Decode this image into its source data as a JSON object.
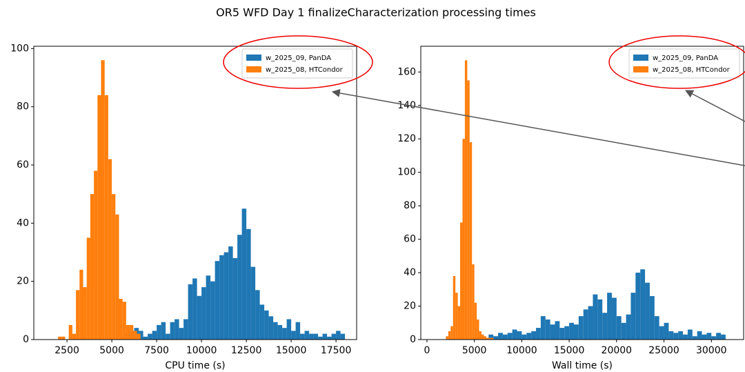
{
  "title": "OR5 WFD Day 1 finalizeCharacterization processing times",
  "chart_data": [
    {
      "type": "histogram",
      "xlabel": "CPU time (s)",
      "legend": "upper right",
      "xlim": [
        650,
        18650
      ],
      "ylim": [
        0,
        100.8
      ],
      "xticks": [
        2500,
        5000,
        7500,
        10000,
        12500,
        15000,
        17500
      ],
      "yticks": [
        0,
        20,
        40,
        60,
        80,
        100
      ],
      "series": [
        {
          "name": "w_2025_09, PanDA",
          "color": "#1f77b4",
          "bins": [
            5500,
            5750,
            6000,
            6250,
            6500,
            6750,
            7000,
            7250,
            7500,
            7750,
            8000,
            8250,
            8500,
            8750,
            9000,
            9250,
            9500,
            9750,
            10000,
            10250,
            10500,
            10750,
            11000,
            11250,
            11500,
            11750,
            12000,
            12250,
            12500,
            12750,
            13000,
            13250,
            13500,
            13750,
            14000,
            14250,
            14500,
            14750,
            15000,
            15250,
            15500,
            15750,
            16000,
            16250,
            16500,
            16750,
            17000,
            17250,
            17500,
            17750,
            18000
          ],
          "values": [
            1,
            2,
            3,
            4,
            3,
            1,
            2,
            3,
            5,
            6,
            2,
            6,
            7,
            4,
            7,
            19,
            21,
            15,
            18,
            22,
            20,
            27,
            29,
            30,
            32,
            28,
            36,
            45,
            38,
            25,
            17,
            12,
            10,
            8,
            6,
            5,
            4,
            7,
            3,
            6,
            2,
            3,
            2,
            2,
            1,
            2,
            1,
            2,
            3,
            2
          ]
        },
        {
          "name": "w_2025_08, HTCondor",
          "color": "#ff7f0e",
          "bins": [
            2000,
            2200,
            2400,
            2600,
            2800,
            3000,
            3200,
            3400,
            3600,
            3800,
            4000,
            4200,
            4400,
            4600,
            4800,
            5000,
            5200,
            5400,
            5600,
            5800,
            6000,
            6200,
            6400,
            6600
          ],
          "values": [
            1,
            1,
            0,
            5,
            2,
            17,
            24,
            18,
            35,
            50,
            58,
            84,
            96,
            84,
            62,
            50,
            43,
            14,
            13,
            5,
            5,
            3,
            2
          ]
        }
      ]
    },
    {
      "type": "histogram",
      "xlabel": "Wall time (s)",
      "legend": "upper right",
      "xlim": [
        -650,
        33400
      ],
      "ylim": [
        0,
        175.4
      ],
      "xticks": [
        0,
        5000,
        10000,
        15000,
        20000,
        25000,
        30000
      ],
      "yticks": [
        0,
        20,
        40,
        60,
        80,
        100,
        120,
        140,
        160
      ],
      "series": [
        {
          "name": "w_2025_09, PanDA",
          "color": "#1f77b4",
          "bins": [
            5000,
            5500,
            6000,
            6500,
            7000,
            7500,
            8000,
            8500,
            9000,
            9500,
            10000,
            10500,
            11000,
            11500,
            12000,
            12500,
            13000,
            13500,
            14000,
            14500,
            15000,
            15500,
            16000,
            16500,
            17000,
            17500,
            18000,
            18500,
            19000,
            19500,
            20000,
            20500,
            21000,
            21500,
            22000,
            22500,
            23000,
            23500,
            24000,
            24500,
            25000,
            25500,
            26000,
            26500,
            27000,
            27500,
            28000,
            28500,
            29000,
            29500,
            30000,
            30500,
            31000,
            31500
          ],
          "values": [
            1,
            2,
            1,
            3,
            2,
            4,
            3,
            4,
            6,
            5,
            3,
            4,
            5,
            7,
            14,
            12,
            9,
            11,
            7,
            8,
            10,
            9,
            14,
            18,
            20,
            27,
            24,
            16,
            28,
            25,
            14,
            10,
            15,
            28,
            40,
            42,
            34,
            26,
            14,
            8,
            10,
            5,
            4,
            5,
            3,
            6,
            2,
            5,
            3,
            4,
            2,
            4,
            3
          ]
        },
        {
          "name": "w_2025_08, HTCondor",
          "color": "#ff7f0e",
          "bins": [
            2000,
            2250,
            2500,
            2750,
            3000,
            3250,
            3500,
            3750,
            4000,
            4250,
            4500,
            4750,
            5000,
            5250,
            5500,
            5750,
            6000,
            6250,
            6500,
            6750,
            7000
          ],
          "values": [
            2,
            5,
            8,
            38,
            28,
            20,
            70,
            120,
            167,
            155,
            118,
            45,
            22,
            12,
            5,
            3,
            2,
            1,
            1,
            1
          ]
        }
      ]
    }
  ]
}
